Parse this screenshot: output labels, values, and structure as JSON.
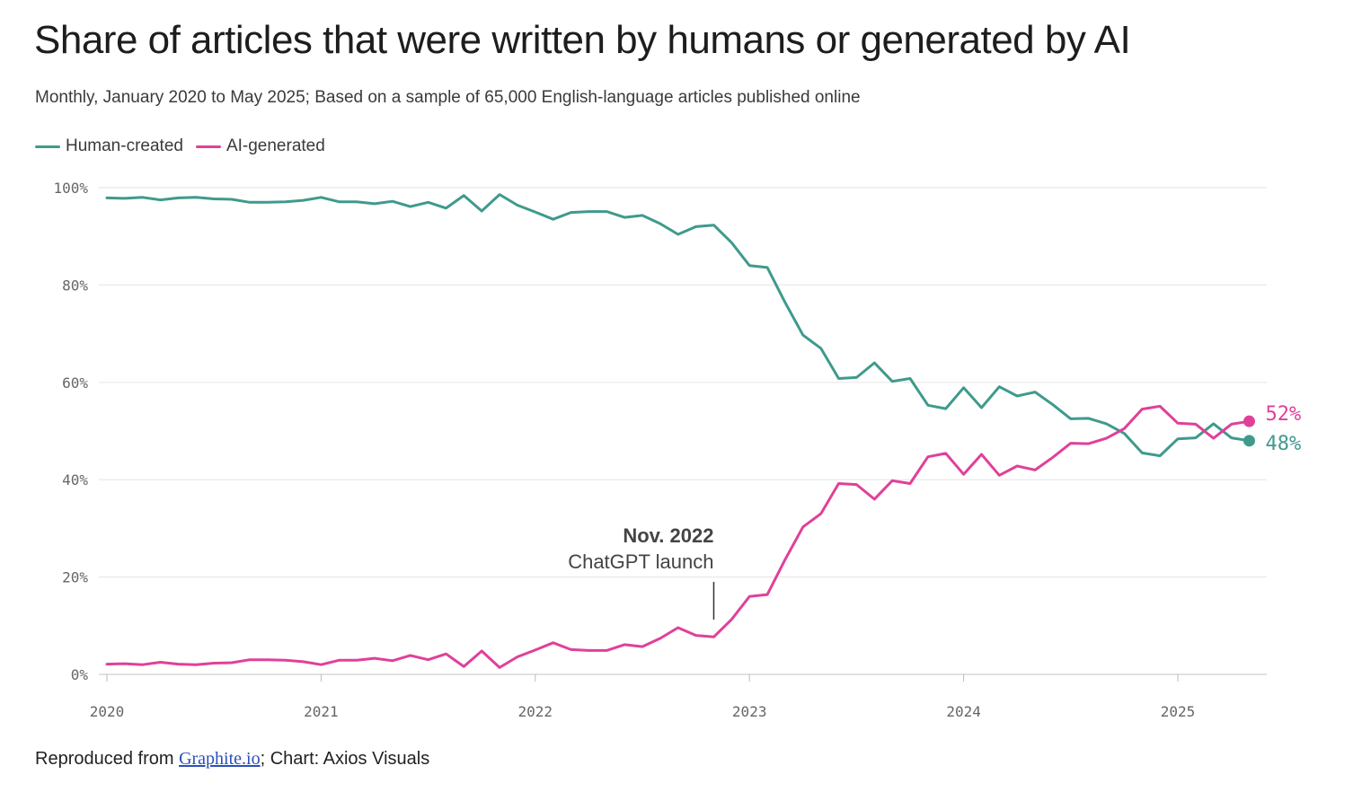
{
  "colors": {
    "human": "#3f9a8c",
    "ai": "#e0409a",
    "grid": "#e8e8e8",
    "text": "#1d1d1d"
  },
  "header": {
    "title": "Share of articles that were written by humans or generated by AI",
    "subtitle": "Monthly, January 2020 to May 2025; Based on a sample of 65,000 English-language articles published online"
  },
  "legend": {
    "human_label": "Human-created",
    "ai_label": "AI-generated"
  },
  "footer": {
    "prefix": "Reproduced from ",
    "link_text": "Graphite.io",
    "suffix": "; Chart: Axios Visuals"
  },
  "chart_data": {
    "type": "line",
    "title": "Share of articles that were written by humans or generated by AI",
    "subtitle": "Monthly, January 2020 to May 2025; Based on a sample of 65,000 English-language articles published online",
    "x_axis": {
      "start": "2020-01",
      "end": "2025-05",
      "ticks": [
        "2020",
        "2021",
        "2022",
        "2023",
        "2024",
        "2025"
      ]
    },
    "y_axis": {
      "range": [
        0,
        100
      ],
      "ticks": [
        0,
        20,
        40,
        60,
        80,
        100
      ],
      "tick_labels": [
        "0%",
        "20%",
        "40%",
        "60%",
        "80%",
        "100%"
      ]
    },
    "grid": "horizontal",
    "legend": "top-left",
    "series": [
      {
        "name": "Human-created",
        "color": "#3f9a8c",
        "end_label": "48%",
        "values": [
          97.9,
          97.8,
          98.0,
          97.5,
          97.9,
          98.0,
          97.7,
          97.6,
          97.0,
          97.0,
          97.1,
          97.4,
          98.0,
          97.1,
          97.1,
          96.7,
          97.2,
          96.1,
          97.0,
          95.8,
          98.4,
          95.2,
          98.6,
          96.4,
          95.0,
          93.5,
          94.9,
          95.1,
          95.1,
          93.9,
          94.3,
          92.6,
          90.4,
          92.0,
          92.3,
          88.7,
          84.0,
          83.6,
          76.4,
          69.7,
          67.0,
          60.8,
          61.0,
          64.0,
          60.2,
          60.8,
          55.3,
          54.6,
          58.9,
          54.8,
          59.1,
          57.2,
          58.0,
          55.4,
          52.5,
          52.6,
          51.5,
          49.5,
          45.5,
          44.9,
          48.4,
          48.6,
          51.5,
          48.6,
          48.0
        ]
      },
      {
        "name": "AI-generated",
        "color": "#e0409a",
        "end_label": "52%",
        "values": [
          2.1,
          2.2,
          2.0,
          2.5,
          2.1,
          2.0,
          2.3,
          2.4,
          3.0,
          3.0,
          2.9,
          2.6,
          2.0,
          2.9,
          2.9,
          3.3,
          2.8,
          3.9,
          3.0,
          4.2,
          1.6,
          4.8,
          1.4,
          3.6,
          5.0,
          6.5,
          5.1,
          4.9,
          4.9,
          6.1,
          5.7,
          7.4,
          9.6,
          8.0,
          7.7,
          11.3,
          16.0,
          16.4,
          23.6,
          30.3,
          33.0,
          39.2,
          39.0,
          36.0,
          39.8,
          39.2,
          44.7,
          45.4,
          41.1,
          45.2,
          40.9,
          42.8,
          42.0,
          44.6,
          47.5,
          47.4,
          48.5,
          50.5,
          54.5,
          55.1,
          51.6,
          51.4,
          48.5,
          51.4,
          52.0
        ]
      }
    ],
    "annotation": {
      "month": "2022-11",
      "line1": "Nov. 2022",
      "line2": "ChatGPT launch"
    }
  }
}
